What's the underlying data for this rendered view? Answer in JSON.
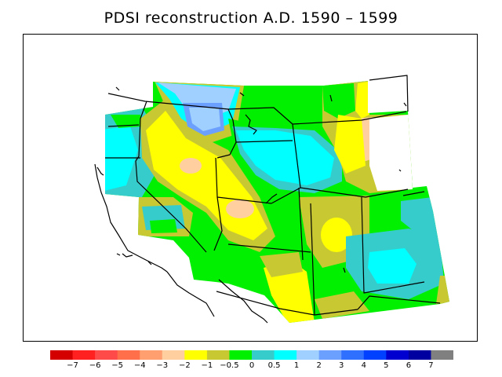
{
  "title": "PDSI reconstruction A.D. 1590 – 1599",
  "legend": {
    "colors": [
      "#d40000",
      "#ff2020",
      "#ff4a4a",
      "#ff6f4a",
      "#ff9f70",
      "#ffcf9f",
      "#ffff00",
      "#c8c832",
      "#00f000",
      "#36cccc",
      "#00ffff",
      "#9fd0ff",
      "#6ca0ff",
      "#3070ff",
      "#0040ff",
      "#0000d0",
      "#0000a0",
      "#808080"
    ],
    "labels": [
      "−7",
      "−6",
      "−5",
      "−4",
      "−3",
      "−2",
      "−1",
      "−0.5",
      "0",
      "0.5",
      "1",
      "2",
      "3",
      "4",
      "5",
      "6",
      "7"
    ]
  }
}
